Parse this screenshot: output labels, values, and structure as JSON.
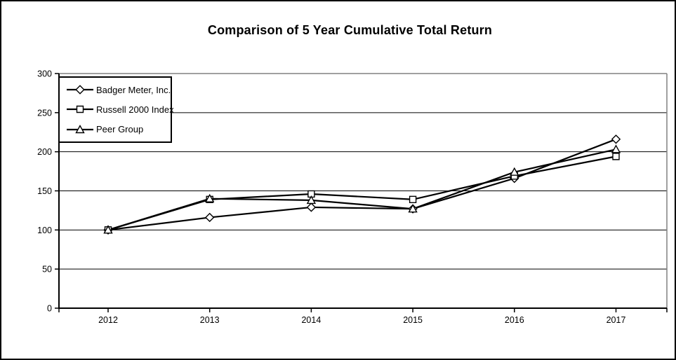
{
  "page": {
    "background_color": "#ffffff",
    "outer_border_color": "#000000"
  },
  "chart_data": {
    "type": "line",
    "title": "Comparison of 5 Year Cumulative Total Return",
    "categories": [
      "2012",
      "2013",
      "2014",
      "2015",
      "2016",
      "2017"
    ],
    "series": [
      {
        "name": "Badger Meter, Inc.",
        "marker": "diamond",
        "values": [
          100,
          116,
          129,
          127,
          166,
          216
        ]
      },
      {
        "name": "Russell 2000 Index",
        "marker": "square",
        "values": [
          100,
          139,
          146,
          139,
          169,
          194
        ]
      },
      {
        "name": "Peer Group",
        "marker": "triangle",
        "values": [
          100,
          140,
          138,
          127,
          174,
          203
        ]
      }
    ],
    "xlabel": "",
    "ylabel": "",
    "ylim": [
      0,
      300
    ],
    "y_ticks": [
      0,
      50,
      100,
      150,
      200,
      250,
      300
    ],
    "grid": "horizontal",
    "legend_position": "top-left-inside",
    "line_color": "#000000",
    "marker_fill": "#ffffff",
    "axis_color": "#000000",
    "frame_color": "#808080"
  }
}
